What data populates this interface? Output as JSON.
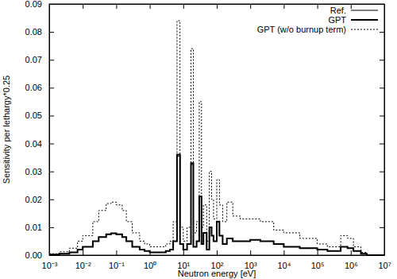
{
  "chart_data": {
    "type": "line",
    "x_label": "Neutron energy [eV]",
    "y_label": "Sensitivity per lethargy*0.25",
    "log": "x",
    "legend": "top-right",
    "xlim": [
      0.001,
      10000000
    ],
    "xticks": [
      {
        "value": 0.001,
        "label": "10⁻³"
      },
      {
        "value": 0.01,
        "label": "10⁻²"
      },
      {
        "value": 0.1,
        "label": "10⁻¹"
      },
      {
        "value": 1,
        "label": "10⁰"
      },
      {
        "value": 10,
        "label": "10¹"
      },
      {
        "value": 100,
        "label": "10²"
      },
      {
        "value": 1000,
        "label": "10³"
      },
      {
        "value": 10000,
        "label": "10⁴"
      },
      {
        "value": 100000,
        "label": "10⁵"
      },
      {
        "value": 1000000,
        "label": "10⁶"
      },
      {
        "value": 10000000,
        "label": "10⁷"
      }
    ],
    "ylim": [
      0,
      0.09
    ],
    "yticks": [
      {
        "value": 0,
        "label": "0.00"
      },
      0.01,
      0.02,
      0.03,
      0.04,
      0.05,
      0.06,
      0.07,
      0.08,
      0.09
    ],
    "x": [
      0.001,
      0.002,
      0.004,
      0.007,
      0.01,
      0.02,
      0.03,
      0.05,
      0.07,
      0.1,
      0.15,
      0.2,
      0.3,
      0.5,
      0.7,
      1,
      1.5,
      2,
      3,
      4,
      5,
      6.5,
      8,
      10,
      13,
      17,
      20,
      25,
      30,
      35,
      40,
      50,
      60,
      70,
      80,
      100,
      120,
      150,
      200,
      300,
      500,
      1000,
      2000,
      5000,
      10000,
      30000,
      100000,
      200000,
      500000,
      800000,
      1200000,
      2000000,
      3000000,
      10000000
    ],
    "series": [
      {
        "name": "Ref.",
        "color": "#000000",
        "line_style": "solid",
        "values": [
          0.0002,
          0.0005,
          0.001,
          0.002,
          0.003,
          0.005,
          0.0065,
          0.0075,
          0.0078,
          0.0075,
          0.0065,
          0.005,
          0.003,
          0.002,
          0.0015,
          0.001,
          0.001,
          0.001,
          0.0015,
          0.002,
          0.005,
          0.0355,
          0.004,
          0.002,
          0.004,
          0.0325,
          0.003,
          0.005,
          0.021,
          0.004,
          0.008,
          0.002,
          0.01,
          0.007,
          0.005,
          0.012,
          0.007,
          0.004,
          0.006,
          0.005,
          0.005,
          0.0055,
          0.005,
          0.004,
          0.003,
          0.0025,
          0.002,
          0.0015,
          0.003,
          0.0025,
          0.0015,
          0.0005,
          0,
          0
        ]
      },
      {
        "name": "GPT",
        "color": "#000000",
        "line_style": "solid",
        "values": [
          0.0002,
          0.0005,
          0.001,
          0.002,
          0.003,
          0.005,
          0.0065,
          0.0075,
          0.0078,
          0.0075,
          0.0065,
          0.005,
          0.003,
          0.002,
          0.0015,
          0.001,
          0.001,
          0.001,
          0.0015,
          0.002,
          0.005,
          0.036,
          0.004,
          0.002,
          0.004,
          0.033,
          0.003,
          0.005,
          0.021,
          0.004,
          0.008,
          0.002,
          0.01,
          0.007,
          0.005,
          0.012,
          0.007,
          0.004,
          0.006,
          0.005,
          0.005,
          0.0055,
          0.005,
          0.004,
          0.003,
          0.0025,
          0.002,
          0.0015,
          0.003,
          0.0025,
          0.0015,
          0.0005,
          0,
          0
        ]
      },
      {
        "name": "GPT (w/o burnup term)",
        "color": "#000000",
        "line_style": "dotted",
        "values": [
          0.0005,
          0.0012,
          0.0025,
          0.005,
          0.007,
          0.012,
          0.016,
          0.0185,
          0.019,
          0.018,
          0.016,
          0.012,
          0.008,
          0.005,
          0.004,
          0.003,
          0.003,
          0.003,
          0.004,
          0.005,
          0.012,
          0.084,
          0.01,
          0.005,
          0.01,
          0.074,
          0.008,
          0.012,
          0.055,
          0.01,
          0.018,
          0.005,
          0.03,
          0.02,
          0.013,
          0.027,
          0.018,
          0.012,
          0.019,
          0.014,
          0.013,
          0.013,
          0.012,
          0.009,
          0.008,
          0.006,
          0.004,
          0.003,
          0.007,
          0.006,
          0.003,
          0.001,
          0,
          0
        ]
      }
    ]
  }
}
